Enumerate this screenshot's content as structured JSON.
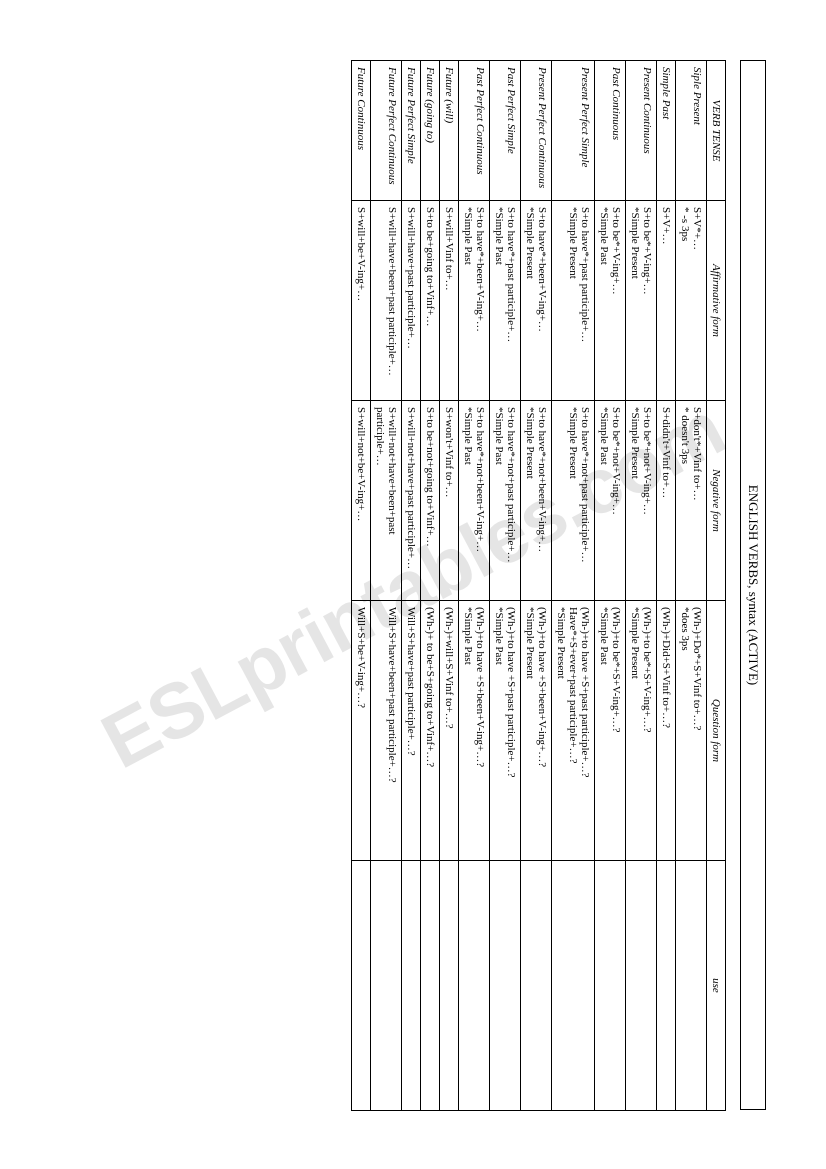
{
  "title": "ENGLISH VERBS, syntax (ACTIVE)",
  "watermark": "ESLprintables.com",
  "headers": {
    "tense": "VERB TENSE",
    "affirmative": "Affirmative form",
    "negative": "Negative form",
    "question": "Question form",
    "use": "use"
  },
  "rows": [
    {
      "tense": "Siple Present",
      "aff": [
        "S+V*+…",
        "* -s 3ps"
      ],
      "neg": [
        "S+don't*+Vinf to+…",
        "* doesn't 3ps"
      ],
      "q": [
        "(Wh-)+Do*+S+Vinf to+…?",
        "*does 3ps"
      ],
      "use": ""
    },
    {
      "tense": "Simple Past",
      "aff": [
        "S+V+…"
      ],
      "neg": [
        "S+didn't+Vinf to+…"
      ],
      "q": [
        "(Wh-)+Did+S+Vinf to+…?"
      ],
      "use": ""
    },
    {
      "tense": "Present Continuous",
      "aff": [
        "S+to be*+V-ing+…",
        "*Simple Present"
      ],
      "neg": [
        "S+to be*+not+V-ing+…",
        "*Simple Present"
      ],
      "q": [
        "(Wh-)+to be*+S+V-ing+…?",
        "*Simple Present"
      ],
      "use": ""
    },
    {
      "tense": "Past Continuous",
      "aff": [
        "S+to be*+V-ing+…",
        "*Simple Past"
      ],
      "neg": [
        "S+to be*+not+V-ing+…",
        "*Simple Past"
      ],
      "q": [
        "(Wh-)+to be*+S+V-ing+…?",
        "*Simple Past"
      ],
      "use": ""
    },
    {
      "tense": "Present Perfect Simple",
      "aff": [
        "S+to have*+past participle+…",
        "*Simple Present"
      ],
      "neg": [
        "S+to have*+not+past participle+…",
        "*Simple Present"
      ],
      "q": [
        "(Wh-)+to have +S+past participle+…?",
        "Have*+S+ever+past participle+…?",
        "*Simple Present"
      ],
      "use": ""
    },
    {
      "tense": "Present Perfect Continuous",
      "aff": [
        "S+to have*+been+V-ing+…",
        "*Simple Present"
      ],
      "neg": [
        "S+to have*+not+been+V-ing+…",
        "*Simple Present"
      ],
      "q": [
        "(Wh-)+to have +S+been+V-ing+…?",
        "*Simple Present"
      ],
      "use": ""
    },
    {
      "tense": "Past Perfect Simple",
      "aff": [
        "S+to have*+past participle+…",
        "*Simple Past"
      ],
      "neg": [
        "S+to have*+not+past participle+…",
        "*Simple Past"
      ],
      "q": [
        "(Wh-)+to have +S+past participle+…?",
        "*Simple Past"
      ],
      "use": ""
    },
    {
      "tense": "Past Perfect Continuous",
      "aff": [
        "S+to have*+been+V-ing+…",
        "*Simple Past"
      ],
      "neg": [
        "S+to have*+not+been+V-ing+…",
        "*Simple Past"
      ],
      "q": [
        "(Wh-)+to have +S+been+V-ing+…?",
        "*Simple Past"
      ],
      "use": ""
    },
    {
      "tense": "Future (will)",
      "aff": [
        "S+will+Vinf to+…"
      ],
      "neg": [
        "S+won't+Vinf to+…"
      ],
      "q": [
        "(Wh-)+will+S+Vinf to+…?"
      ],
      "use": ""
    },
    {
      "tense": "Future (going to)",
      "aff": [
        "S+to be+going to+Vinf+…"
      ],
      "neg": [
        "S+to be+not+going to+Vinf+…"
      ],
      "q": [
        "(Wh-)+ to be+S+going to+Vinf+…?"
      ],
      "use": ""
    },
    {
      "tense": "Future Perfect Simple",
      "aff": [
        "S+will+have+past participle+…"
      ],
      "neg": [
        "S+will+not+have+past participle+…"
      ],
      "q": [
        "Will+S+have+past participle+…?"
      ],
      "use": ""
    },
    {
      "tense": "Future Perfect Continuous",
      "aff": [
        "S+will+have+been+past participle+…"
      ],
      "neg": [
        "S+will+not+have+been+past participle+…"
      ],
      "q": [
        "Will+S+have+been+past participle+…?"
      ],
      "use": ""
    },
    {
      "tense": "Future Continuous",
      "aff": [
        "S+will+be+V-ing+…"
      ],
      "neg": [
        "S+will+not+be+V-ing+…"
      ],
      "q": [
        "Will+S+be+V-ing+…?"
      ],
      "use": ""
    }
  ]
}
